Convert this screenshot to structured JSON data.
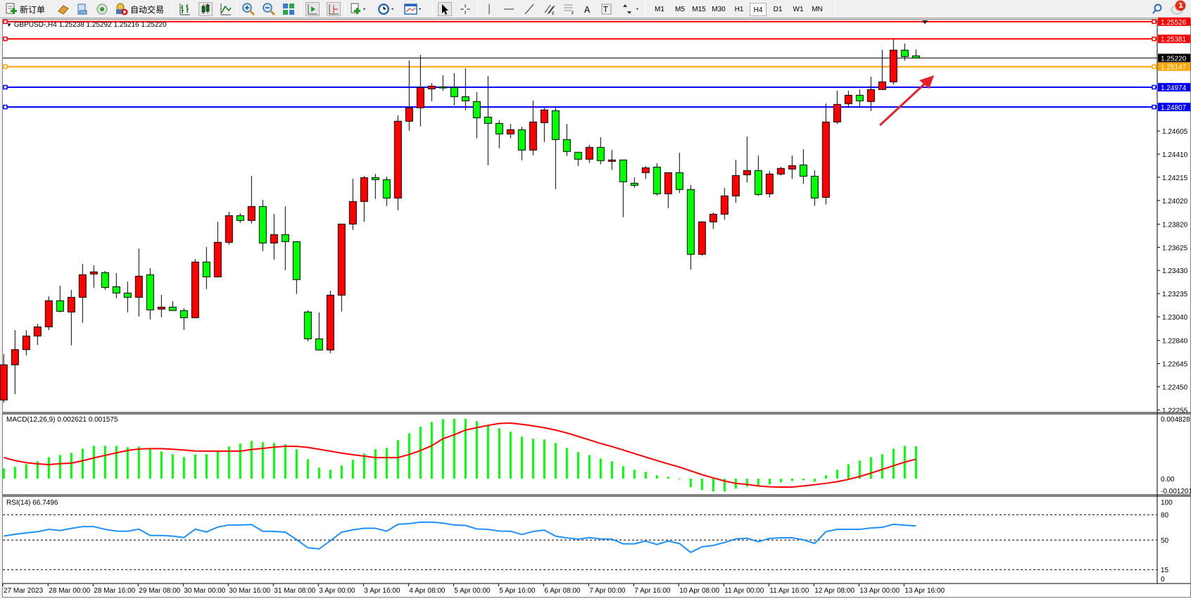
{
  "toolbar": {
    "new_order": "新订单",
    "auto_trading": "自动交易",
    "timeframes": [
      "M1",
      "M5",
      "M15",
      "M30",
      "H1",
      "H4",
      "D1",
      "W1",
      "MN"
    ],
    "active_timeframe": "H4",
    "notification_count": "1"
  },
  "chart": {
    "header": "GBPUSD-,H4  1.25238 1.25292 1.25216 1.25220",
    "price_ticks": [
      "1.24605",
      "1.24410",
      "1.24215",
      "1.24020",
      "1.23820",
      "1.23625",
      "1.23430",
      "1.23235",
      "1.23040",
      "1.22840",
      "1.22645",
      "1.22450",
      "1.22255"
    ],
    "hlines": [
      {
        "price": "1.25526",
        "color": "#ff0000",
        "text_color": "#ffffff"
      },
      {
        "price": "1.25381",
        "color": "#ff0000",
        "text_color": "#ffffff"
      },
      {
        "price": "1.25220",
        "color": "#000000",
        "text_color": "#ffffff"
      },
      {
        "price": "1.25147",
        "color": "#ffa500",
        "text_color": "#ffffff"
      },
      {
        "price": "1.24974",
        "color": "#0000ff",
        "text_color": "#ffffff"
      },
      {
        "price": "1.24807",
        "color": "#0000ff",
        "text_color": "#ffffff"
      }
    ],
    "bull_color": "#ff0000",
    "bear_color": "#00ff00",
    "annotation_arrow_color": "#e8202a"
  },
  "macd": {
    "label": "MACD(12,26,9) 0.002621 0.001575",
    "ticks": [
      "0.004828",
      "0.00",
      "-0.001201"
    ]
  },
  "rsi": {
    "label": "RSI(14) 66.7496",
    "ticks": [
      "100",
      "80",
      "50",
      "15",
      "0"
    ]
  },
  "chart_data": [
    {
      "type": "candlestick",
      "symbol": "GBPUSD-",
      "timeframe": "H4",
      "ohlc": [
        [
          1.22339,
          1.22726,
          1.22317,
          1.22635
        ],
        [
          1.22635,
          1.22927,
          1.22388,
          1.22763
        ],
        [
          1.22763,
          1.22927,
          1.22714,
          1.22878
        ],
        [
          1.22878,
          1.22981,
          1.22803,
          1.22955
        ],
        [
          1.22955,
          1.23212,
          1.22927,
          1.23175
        ],
        [
          1.23175,
          1.23301,
          1.23077,
          1.23086
        ],
        [
          1.2308,
          1.23265,
          1.22799,
          1.23204
        ],
        [
          1.23204,
          1.23485,
          1.22989,
          1.23394
        ],
        [
          1.234,
          1.23473,
          1.23285,
          1.23418
        ],
        [
          1.23412,
          1.23426,
          1.23267,
          1.23287
        ],
        [
          1.23293,
          1.23408,
          1.23196,
          1.2324
        ],
        [
          1.2324,
          1.23337,
          1.23077,
          1.23204
        ],
        [
          1.23204,
          1.23615,
          1.23042,
          1.23382
        ],
        [
          1.23394,
          1.23449,
          1.23018,
          1.23098
        ],
        [
          1.23104,
          1.23224,
          1.23036,
          1.23121
        ],
        [
          1.23121,
          1.23171,
          1.23092,
          1.23092
        ],
        [
          1.23092,
          1.23111,
          1.22929,
          1.23032
        ],
        [
          1.23032,
          1.23526,
          1.23026,
          1.23501
        ],
        [
          1.23501,
          1.23627,
          1.23273,
          1.23376
        ],
        [
          1.23376,
          1.23841,
          1.2337,
          1.23667
        ],
        [
          1.23667,
          1.23924,
          1.23647,
          1.23892
        ],
        [
          1.23892,
          1.23912,
          1.23831,
          1.23851
        ],
        [
          1.23851,
          1.24226,
          1.23825,
          1.23969
        ],
        [
          1.23969,
          1.24024,
          1.23593,
          1.23661
        ],
        [
          1.23661,
          1.23906,
          1.23522,
          1.23732
        ],
        [
          1.23732,
          1.23971,
          1.23433,
          1.23673
        ],
        [
          1.23673,
          1.23675,
          1.23232,
          1.23353
        ],
        [
          1.2308,
          1.23093,
          1.22834,
          1.22854
        ],
        [
          1.22854,
          1.23076,
          1.2276,
          1.2276
        ],
        [
          1.2276,
          1.23259,
          1.22733,
          1.23222
        ],
        [
          1.23222,
          1.23823,
          1.23083,
          1.23821
        ],
        [
          1.23821,
          1.24202,
          1.23771,
          1.24011
        ],
        [
          1.24011,
          1.24226,
          1.23841,
          1.24212
        ],
        [
          1.24212,
          1.24244,
          1.24032,
          1.24195
        ],
        [
          1.24195,
          1.2422,
          1.23973,
          1.2404
        ],
        [
          1.2404,
          1.24736,
          1.23937,
          1.24687
        ],
        [
          1.24687,
          1.25199,
          1.24607,
          1.248
        ],
        [
          1.248,
          1.25246,
          1.24643,
          1.24971
        ],
        [
          1.2496,
          1.25009,
          1.24856,
          1.24983
        ],
        [
          1.24976,
          1.25074,
          1.24944,
          1.24975
        ],
        [
          1.24971,
          1.25092,
          1.24821,
          1.24894
        ],
        [
          1.24894,
          1.25133,
          1.24779,
          1.24859
        ],
        [
          1.24853,
          1.24932,
          1.24542,
          1.24716
        ],
        [
          1.24722,
          1.25068,
          1.24317,
          1.24669
        ],
        [
          1.24669,
          1.24695,
          1.24459,
          1.2458
        ],
        [
          1.2458,
          1.24665,
          1.24542,
          1.24616
        ],
        [
          1.24616,
          1.24641,
          1.24358,
          1.24444
        ],
        [
          1.24444,
          1.24861,
          1.244,
          1.24681
        ],
        [
          1.24675,
          1.24801,
          1.24512,
          1.24782
        ],
        [
          1.24776,
          1.24801,
          1.24115,
          1.24533
        ],
        [
          1.24533,
          1.24665,
          1.24394,
          1.24432
        ],
        [
          1.24426,
          1.24427,
          1.24311,
          1.24367
        ],
        [
          1.24367,
          1.24487,
          1.24335,
          1.24467
        ],
        [
          1.24467,
          1.24552,
          1.24325,
          1.24355
        ],
        [
          1.24349,
          1.24445,
          1.24278,
          1.24361
        ],
        [
          1.24361,
          1.24362,
          1.23878,
          1.24177
        ],
        [
          1.24165,
          1.24214,
          1.24127,
          1.24147
        ],
        [
          1.24254,
          1.24309,
          1.24201,
          1.24295
        ],
        [
          1.24301,
          1.24333,
          1.24062,
          1.24076
        ],
        [
          1.24076,
          1.24256,
          1.23955,
          1.24254
        ],
        [
          1.24254,
          1.24422,
          1.24082,
          1.24112
        ],
        [
          1.24112,
          1.24149,
          1.23436,
          1.23566
        ],
        [
          1.23566,
          1.23845,
          1.23554,
          1.23839
        ],
        [
          1.23839,
          1.23918,
          1.2378,
          1.23904
        ],
        [
          1.23904,
          1.24125,
          1.23857,
          1.24058
        ],
        [
          1.24058,
          1.24362,
          1.23999,
          1.2423
        ],
        [
          1.24236,
          1.24558,
          1.24171,
          1.24272
        ],
        [
          1.24272,
          1.24398,
          1.24058,
          1.2407
        ],
        [
          1.24076,
          1.24268,
          1.24046,
          1.24242
        ],
        [
          1.24242,
          1.24303,
          1.2423,
          1.2429
        ],
        [
          1.24284,
          1.24398,
          1.24201,
          1.24313
        ],
        [
          1.24319,
          1.24451,
          1.24159,
          1.24224
        ],
        [
          1.24224,
          1.24274,
          1.23975,
          1.2404
        ],
        [
          1.24046,
          1.24837,
          1.23987,
          1.24681
        ],
        [
          1.24681,
          1.24944,
          1.24663,
          1.24829
        ],
        [
          1.24835,
          1.24944,
          1.248,
          1.24906
        ],
        [
          1.24906,
          1.24955,
          1.24811,
          1.24859
        ],
        [
          1.24853,
          1.25062,
          1.24773,
          1.24954
        ],
        [
          1.24954,
          1.25288,
          1.2495,
          1.25019
        ],
        [
          1.25019,
          1.2538,
          1.24995,
          1.25286
        ],
        [
          1.25286,
          1.25341,
          1.25197,
          1.25232
        ],
        [
          1.25238,
          1.25292,
          1.25216,
          1.2522
        ]
      ],
      "time_labels": [
        {
          "bar": 0,
          "label": "27 Mar 2023"
        },
        {
          "bar": 4,
          "label": "28 Mar 00:00"
        },
        {
          "bar": 8,
          "label": "28 Mar 16:00"
        },
        {
          "bar": 12,
          "label": "29 Mar 08:00"
        },
        {
          "bar": 16,
          "label": "30 Mar 00:00"
        },
        {
          "bar": 20,
          "label": "30 Mar 16:00"
        },
        {
          "bar": 24,
          "label": "31 Mar 08:00"
        },
        {
          "bar": 28,
          "label": "3 Apr 00:00"
        },
        {
          "bar": 32,
          "label": "3 Apr 16:00"
        },
        {
          "bar": 36,
          "label": "4 Apr 08:00"
        },
        {
          "bar": 40,
          "label": "5 Apr 00:00"
        },
        {
          "bar": 44,
          "label": "5 Apr 16:00"
        },
        {
          "bar": 48,
          "label": "6 Apr 08:00"
        },
        {
          "bar": 52,
          "label": "7 Apr 00:00"
        },
        {
          "bar": 56,
          "label": "7 Apr 16:00"
        },
        {
          "bar": 60,
          "label": "10 Apr 08:00"
        },
        {
          "bar": 64,
          "label": "11 Apr 00:00"
        },
        {
          "bar": 68,
          "label": "11 Apr 16:00"
        },
        {
          "bar": 72,
          "label": "12 Apr 08:00"
        },
        {
          "bar": 76,
          "label": "13 Apr 00:00"
        },
        {
          "bar": 80,
          "label": "13 Apr 16:00"
        }
      ],
      "ylim": [
        1.22255,
        1.25526
      ]
    },
    {
      "type": "bar+line",
      "name": "MACD(12,26,9)",
      "histogram": [
        0.00083,
        0.00095,
        0.00117,
        0.0014,
        0.00174,
        0.00191,
        0.00208,
        0.00242,
        0.00265,
        0.00265,
        0.00265,
        0.00254,
        0.00259,
        0.00237,
        0.0022,
        0.00197,
        0.00174,
        0.00197,
        0.00197,
        0.0022,
        0.00259,
        0.00282,
        0.00305,
        0.00294,
        0.00288,
        0.00277,
        0.00237,
        0.00157,
        0.00089,
        0.00072,
        0.00106,
        0.00152,
        0.00203,
        0.00237,
        0.00248,
        0.00311,
        0.00367,
        0.00419,
        0.00458,
        0.00481,
        0.00483,
        0.00483,
        0.00464,
        0.0043,
        0.00407,
        0.00379,
        0.00339,
        0.00322,
        0.00316,
        0.00288,
        0.00248,
        0.00214,
        0.00191,
        0.00163,
        0.0014,
        0.001,
        0.00072,
        0.00055,
        0.00027,
        0.00015,
        2e-05,
        -0.0007,
        -0.00093,
        -0.00104,
        -0.00104,
        -0.00081,
        -0.00064,
        -0.00059,
        -0.00047,
        -0.0003,
        -0.00019,
        -0.00013,
        -0.00025,
        0.00027,
        0.00072,
        0.00117,
        0.00146,
        0.00174,
        0.00197,
        0.00242,
        0.00265,
        0.002621
      ],
      "signal": [
        0.0017,
        0.00146,
        0.00129,
        0.00119,
        0.00114,
        0.00121,
        0.00125,
        0.00144,
        0.00167,
        0.00188,
        0.00208,
        0.00227,
        0.00239,
        0.00242,
        0.00242,
        0.00237,
        0.00231,
        0.00223,
        0.00222,
        0.00222,
        0.00222,
        0.00222,
        0.00235,
        0.00244,
        0.00254,
        0.00261,
        0.00261,
        0.00252,
        0.00237,
        0.00222,
        0.00206,
        0.00193,
        0.00182,
        0.0017,
        0.0017,
        0.0017,
        0.00195,
        0.00227,
        0.00265,
        0.00322,
        0.00354,
        0.00392,
        0.00411,
        0.0043,
        0.00445,
        0.00449,
        0.00438,
        0.00426,
        0.00411,
        0.00392,
        0.00369,
        0.00341,
        0.00313,
        0.00284,
        0.00259,
        0.00231,
        0.00203,
        0.00174,
        0.00146,
        0.00119,
        0.00093,
        0.00063,
        0.00032,
        6e-05,
        -0.00019,
        -0.00038,
        -0.00047,
        -0.00059,
        -0.00066,
        -0.00068,
        -0.00068,
        -0.00059,
        -0.00049,
        -0.00038,
        -0.00025,
        -6e-05,
        0.00017,
        0.00044,
        0.00074,
        0.00104,
        0.00133,
        0.001575
      ],
      "ylim": [
        -0.001201,
        0.004828
      ],
      "histogram_color": "#00ff00",
      "signal_color": "#ff0000"
    },
    {
      "type": "line",
      "name": "RSI(14)",
      "values": [
        54.7,
        56.9,
        58.5,
        59.9,
        62.7,
        61.3,
        63.8,
        66.0,
        66.0,
        62.7,
        60.7,
        60.5,
        62.9,
        55.5,
        55.5,
        54.7,
        53.0,
        62.9,
        59.6,
        65.4,
        67.9,
        67.9,
        68.4,
        60.5,
        60.2,
        59.4,
        50.6,
        40.9,
        39.5,
        49.2,
        59.4,
        62.1,
        64.0,
        64.0,
        60.5,
        68.7,
        69.5,
        71.2,
        71.2,
        70.1,
        67.9,
        67.3,
        63.2,
        62.7,
        60.7,
        60.5,
        56.6,
        60.2,
        61.8,
        54.7,
        52.5,
        51.1,
        52.8,
        51.4,
        51.1,
        45.6,
        45.6,
        48.9,
        44.8,
        48.9,
        45.9,
        35.4,
        42.0,
        43.7,
        47.2,
        51.4,
        52.2,
        48.1,
        51.9,
        52.8,
        52.8,
        50.3,
        46.1,
        59.9,
        62.7,
        62.7,
        62.7,
        64.3,
        65.1,
        68.7,
        67.6,
        66.7496
      ],
      "levels": [
        80,
        50,
        15
      ],
      "ylim": [
        0,
        100
      ],
      "color": "#1e90ff"
    }
  ]
}
